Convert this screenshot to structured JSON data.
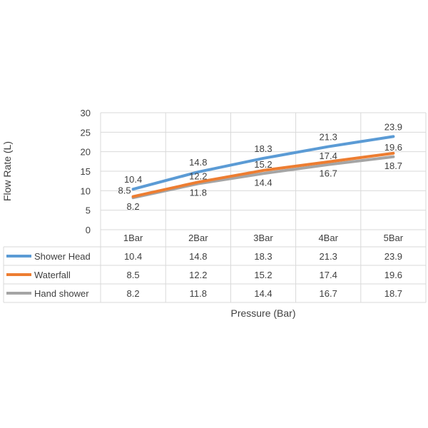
{
  "chart_data": {
    "type": "line",
    "title": "",
    "xlabel": "Pressure (Bar)",
    "ylabel": "Flow Rate (L)",
    "ylim": [
      0,
      30
    ],
    "yticks": [
      0,
      5,
      10,
      15,
      20,
      25,
      30
    ],
    "categories": [
      "1Bar",
      "2Bar",
      "3Bar",
      "4Bar",
      "5Bar"
    ],
    "grid": true,
    "legend": "data-table",
    "series": [
      {
        "name": "Shower Head",
        "color": "#5B9BD5",
        "values": [
          10.4,
          14.8,
          18.3,
          21.3,
          23.9
        ]
      },
      {
        "name": "Waterfall",
        "color": "#ED7D31",
        "values": [
          8.5,
          12.2,
          15.2,
          17.4,
          19.6
        ]
      },
      {
        "name": "Hand shower",
        "color": "#A5A5A5",
        "values": [
          8.2,
          11.8,
          14.4,
          16.7,
          18.7
        ]
      }
    ]
  }
}
